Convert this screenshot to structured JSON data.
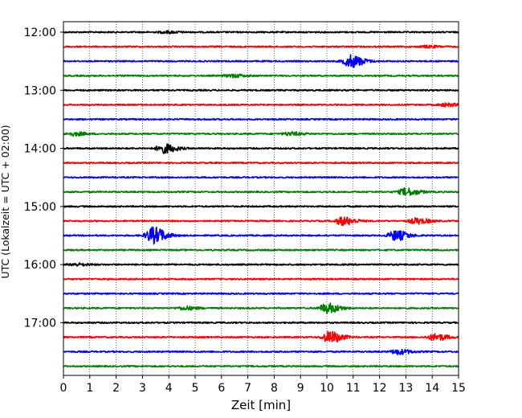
{
  "chart_data": {
    "type": "line",
    "xlabel": "Zeit  [min]",
    "ylabel": "UTC (Lokalzeit = UTC + 02:00)",
    "xlim": [
      0,
      15
    ],
    "x_ticks": [
      "0",
      "1",
      "2",
      "3",
      "4",
      "5",
      "6",
      "7",
      "8",
      "9",
      "10",
      "11",
      "12",
      "13",
      "14",
      "15"
    ],
    "y_tick_labels": [
      "12:00",
      "13:00",
      "14:00",
      "15:00",
      "16:00",
      "17:00"
    ],
    "grid": "vertical dotted",
    "trace_interval_min": 15,
    "trace_colors": [
      "#000000",
      "#ff0000",
      "#0000ff",
      "#007f00"
    ],
    "traces": [
      {
        "start": "12:00",
        "color": "#000000",
        "noise": 0.9,
        "events": [
          {
            "t": 3.9,
            "amp": 1.2
          }
        ]
      },
      {
        "start": "12:15",
        "color": "#ff0000",
        "noise": 0.9,
        "events": [
          {
            "t": 13.8,
            "amp": 1.2
          }
        ]
      },
      {
        "start": "12:30",
        "color": "#0000ff",
        "noise": 0.9,
        "events": [
          {
            "t": 10.9,
            "amp": 7.5
          }
        ]
      },
      {
        "start": "12:45",
        "color": "#007f00",
        "noise": 0.9,
        "events": [
          {
            "t": 6.4,
            "amp": 1.8
          }
        ]
      },
      {
        "start": "13:00",
        "color": "#000000",
        "noise": 0.9,
        "events": []
      },
      {
        "start": "13:15",
        "color": "#ff0000",
        "noise": 0.9,
        "events": [
          {
            "t": 14.5,
            "amp": 1.8
          }
        ]
      },
      {
        "start": "13:30",
        "color": "#0000ff",
        "noise": 0.9,
        "events": []
      },
      {
        "start": "13:45",
        "color": "#007f00",
        "noise": 0.9,
        "events": [
          {
            "t": 0.4,
            "amp": 2
          },
          {
            "t": 8.6,
            "amp": 2
          }
        ]
      },
      {
        "start": "14:00",
        "color": "#000000",
        "noise": 0.9,
        "events": [
          {
            "t": 3.8,
            "amp": 5.5
          }
        ]
      },
      {
        "start": "14:15",
        "color": "#ff0000",
        "noise": 0.9,
        "events": []
      },
      {
        "start": "14:30",
        "color": "#0000ff",
        "noise": 0.9,
        "events": []
      },
      {
        "start": "14:45",
        "color": "#007f00",
        "noise": 0.9,
        "events": [
          {
            "t": 13.0,
            "amp": 4.5
          }
        ]
      },
      {
        "start": "15:00",
        "color": "#000000",
        "noise": 0.9,
        "events": []
      },
      {
        "start": "15:15",
        "color": "#ff0000",
        "noise": 0.9,
        "events": [
          {
            "t": 10.6,
            "amp": 5
          },
          {
            "t": 13.4,
            "amp": 3.5
          }
        ]
      },
      {
        "start": "15:30",
        "color": "#0000ff",
        "noise": 0.9,
        "events": [
          {
            "t": 3.4,
            "amp": 10
          },
          {
            "t": 12.6,
            "amp": 6
          }
        ]
      },
      {
        "start": "15:45",
        "color": "#007f00",
        "noise": 0.9,
        "events": []
      },
      {
        "start": "16:00",
        "color": "#000000",
        "noise": 0.9,
        "events": [
          {
            "t": 0.5,
            "amp": 1.5
          }
        ]
      },
      {
        "start": "16:15",
        "color": "#ff0000",
        "noise": 0.9,
        "events": []
      },
      {
        "start": "16:30",
        "color": "#0000ff",
        "noise": 0.9,
        "events": []
      },
      {
        "start": "16:45",
        "color": "#007f00",
        "noise": 0.9,
        "events": [
          {
            "t": 4.6,
            "amp": 2
          },
          {
            "t": 10.0,
            "amp": 6
          }
        ]
      },
      {
        "start": "17:00",
        "color": "#000000",
        "noise": 0.9,
        "events": []
      },
      {
        "start": "17:15",
        "color": "#ff0000",
        "noise": 0.9,
        "events": [
          {
            "t": 10.1,
            "amp": 7
          },
          {
            "t": 14.1,
            "amp": 4
          }
        ]
      },
      {
        "start": "17:30",
        "color": "#0000ff",
        "noise": 0.9,
        "events": [
          {
            "t": 12.7,
            "amp": 3
          }
        ]
      },
      {
        "start": "17:45",
        "color": "#007f00",
        "noise": 0.9,
        "events": []
      }
    ]
  }
}
